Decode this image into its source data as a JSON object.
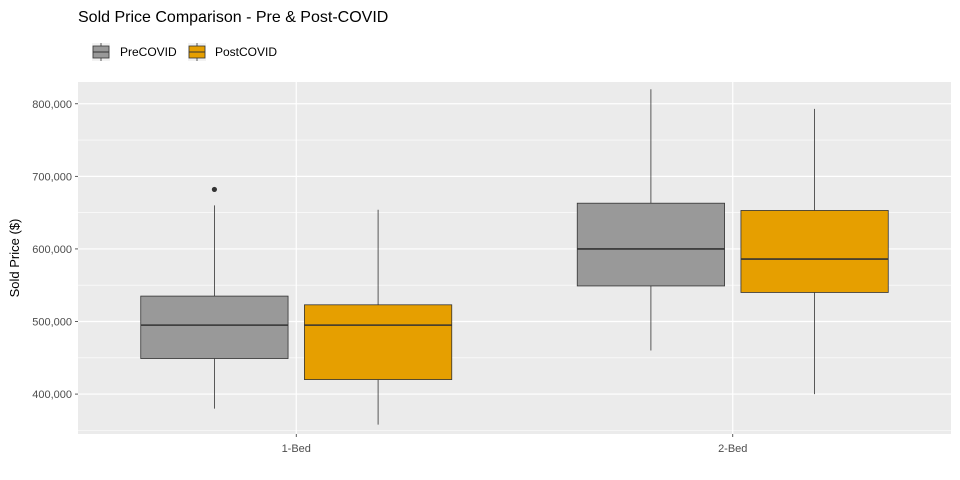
{
  "chart_data": {
    "type": "boxplot",
    "title": "Sold Price Comparison - Pre & Post-COVID",
    "xlabel": "",
    "ylabel": "Sold Price ($)",
    "ylim": [
      345000,
      830000
    ],
    "y_ticks": [
      400000,
      500000,
      600000,
      700000,
      800000
    ],
    "y_tick_labels": [
      "400,000",
      "500,000",
      "600,000",
      "700,000",
      "800,000"
    ],
    "categories": [
      "1-Bed",
      "2-Bed"
    ],
    "legend_position": "top-left",
    "grid": true,
    "background": "#ebebeb",
    "series": [
      {
        "name": "PreCOVID",
        "color": "#999999",
        "boxes": [
          {
            "category": "1-Bed",
            "min": 380000,
            "q1": 449000,
            "median": 495000,
            "q3": 535000,
            "max": 660000,
            "outliers": [
              682000
            ]
          },
          {
            "category": "2-Bed",
            "min": 460000,
            "q1": 549000,
            "median": 600000,
            "q3": 663000,
            "max": 820000,
            "outliers": []
          }
        ]
      },
      {
        "name": "PostCOVID",
        "color": "#E69F00",
        "boxes": [
          {
            "category": "1-Bed",
            "min": 358000,
            "q1": 420000,
            "median": 495000,
            "q3": 523000,
            "max": 654000,
            "outliers": []
          },
          {
            "category": "2-Bed",
            "min": 400000,
            "q1": 540000,
            "median": 586000,
            "q3": 653000,
            "max": 793000,
            "outliers": []
          }
        ]
      }
    ]
  }
}
